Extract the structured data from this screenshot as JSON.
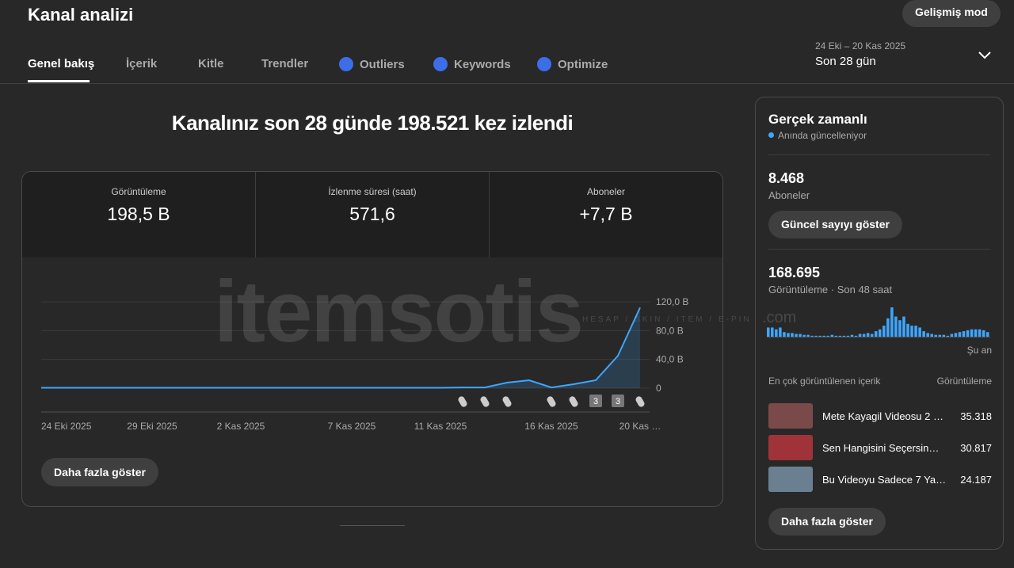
{
  "header": {
    "title": "Kanal analizi",
    "advanced_button": "Gelişmiş mod",
    "date_range": "24 Eki – 20 Kas 2025",
    "period": "Son 28 gün"
  },
  "tabs": [
    "Genel bakış",
    "İçerik",
    "Kitle",
    "Trendler",
    "Outliers",
    "Keywords",
    "Optimize"
  ],
  "headline": "Kanalınız son 28 günde 198.521 kez izlendi",
  "metrics": [
    {
      "label": "Görüntüleme",
      "value": "198,5 B"
    },
    {
      "label": "İzlenme süresi (saat)",
      "value": "571,6"
    },
    {
      "label": "Aboneler",
      "value": "+7,7 B"
    }
  ],
  "chart_data": {
    "type": "line",
    "color": "#3ea6ff",
    "categories": [
      "24 Eki 2025",
      null,
      null,
      null,
      null,
      "29 Eki 2025",
      null,
      null,
      null,
      "2 Kas 2025",
      null,
      null,
      null,
      null,
      "7 Kas 2025",
      null,
      null,
      null,
      "11 Kas 2025",
      null,
      null,
      null,
      null,
      "16 Kas 2025",
      null,
      null,
      null,
      "20 Kas …"
    ],
    "values": [
      0.5,
      0.5,
      0.5,
      0.5,
      0.5,
      0.5,
      0.5,
      0.5,
      0.5,
      0.5,
      0.5,
      0.5,
      0.5,
      0.5,
      0.5,
      0.5,
      0.5,
      0.5,
      0.5,
      1,
      1,
      7.7,
      11,
      1,
      5.5,
      11,
      45,
      112
    ],
    "ylim": [
      0,
      120
    ],
    "yticks": [
      {
        "value": 0,
        "label": "0"
      },
      {
        "value": 40,
        "label": "40,0 B"
      },
      {
        "value": 80,
        "label": "80,0 B"
      },
      {
        "value": 120,
        "label": "120,0 B"
      }
    ],
    "grid": true,
    "upload_badges": [
      "3",
      "3"
    ]
  },
  "more_button": "Daha fazla göster",
  "realtime": {
    "title": "Gerçek zamanlı",
    "subtitle": "Anında güncelleniyor",
    "subscribers": "8.468",
    "subscribers_label": "Aboneler",
    "show_button": "Güncel sayıyı göster",
    "views": "168.695",
    "views_label": "Görüntüleme · Son 48 saat",
    "now_label": "Şu an",
    "chart": {
      "type": "bar",
      "color": "#3ea6ff",
      "ylim": [
        0,
        32
      ],
      "values": [
        10,
        10,
        8,
        10,
        5,
        4,
        4,
        3,
        3,
        2,
        2,
        1,
        1,
        1,
        1,
        1,
        2,
        1,
        1,
        1,
        1,
        2,
        1,
        3,
        3,
        4,
        3,
        6,
        8,
        12,
        20,
        32,
        22,
        18,
        22,
        14,
        12,
        12,
        10,
        6,
        4,
        3,
        2,
        2,
        2,
        1,
        3,
        4,
        5,
        6,
        7,
        8,
        8,
        8,
        7,
        5
      ]
    },
    "top_header": "En çok görüntülenen içerik",
    "top_header_metric": "Görüntüleme",
    "top_content": [
      {
        "title": "Mete Kayagil Videosu 2 …",
        "views": "35.318"
      },
      {
        "title": "Sen Hangisini Seçersin…",
        "views": "30.817"
      },
      {
        "title": "Bu Videoyu Sadece 7 Ya…",
        "views": "24.187"
      }
    ],
    "more_button": "Daha fazla göster"
  },
  "watermark": {
    "text": "itemsotis",
    "tagline": "HESAP / SKIN / ITEM / E-PIN",
    "domain": ".com"
  }
}
